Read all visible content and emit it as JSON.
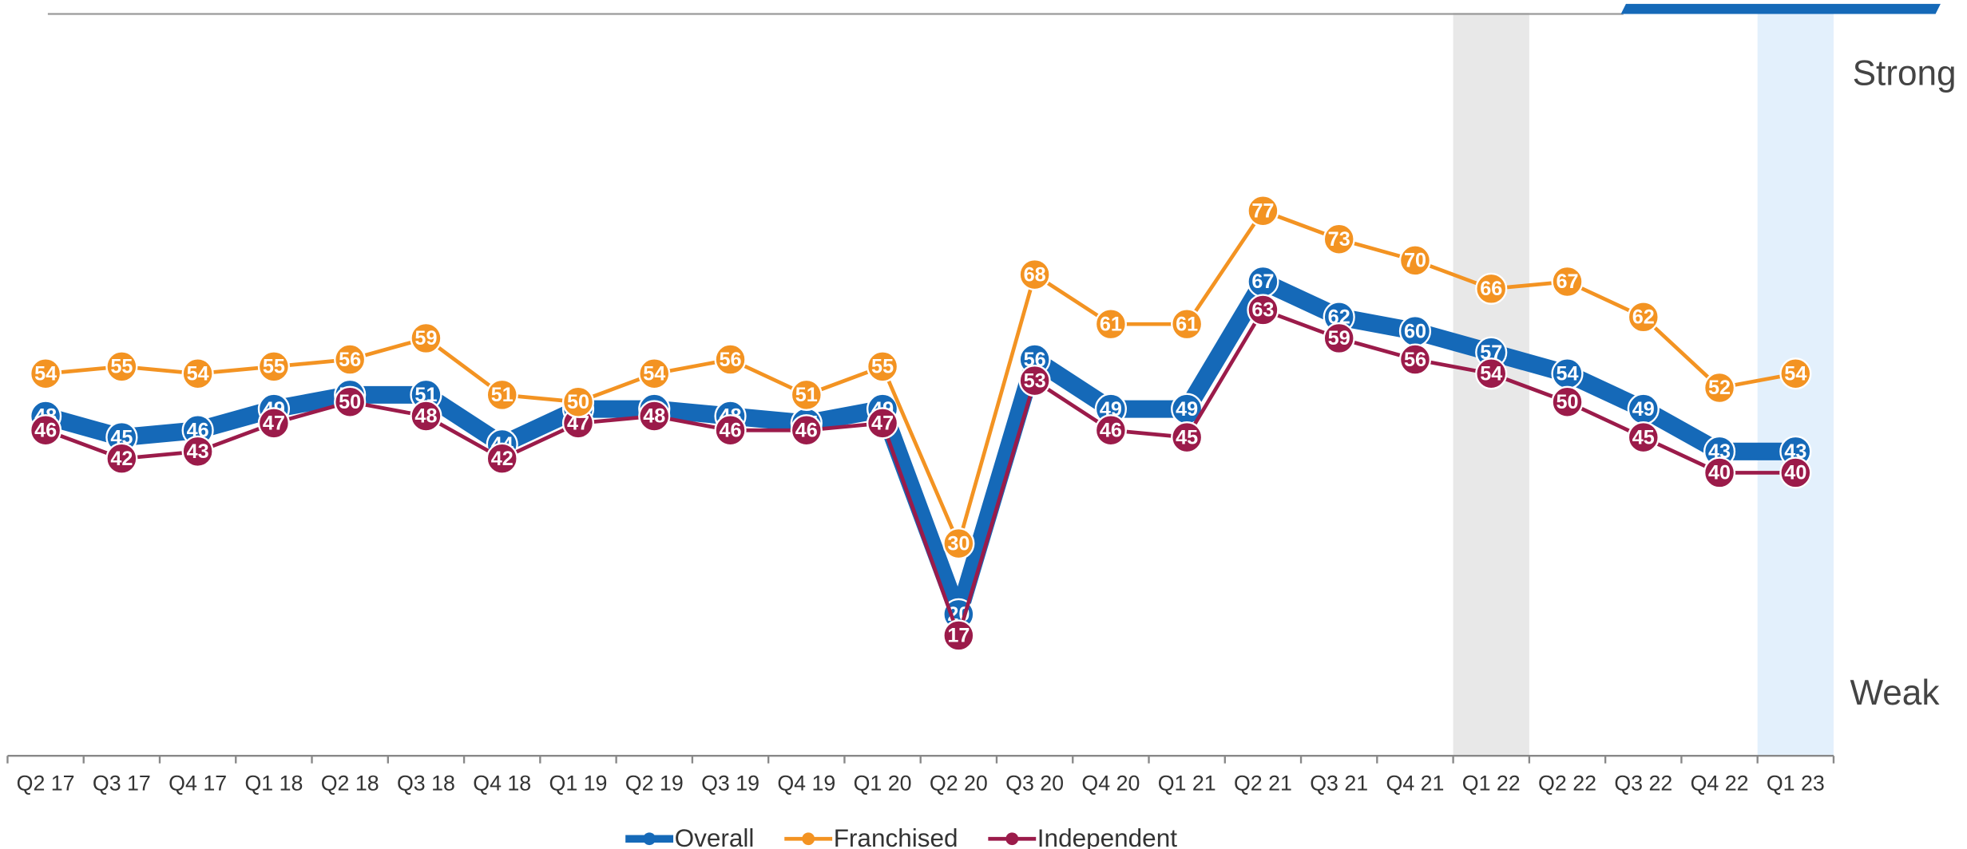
{
  "chart_data": {
    "type": "line",
    "categories": [
      "Q2 17",
      "Q3 17",
      "Q4 17",
      "Q1 18",
      "Q2 18",
      "Q3 18",
      "Q4 18",
      "Q1 19",
      "Q2 19",
      "Q3 19",
      "Q4 19",
      "Q1 20",
      "Q2 20",
      "Q3 20",
      "Q4 20",
      "Q1 21",
      "Q2 21",
      "Q3 21",
      "Q4 21",
      "Q1 22",
      "Q2 22",
      "Q3 22",
      "Q4 22",
      "Q1 23"
    ],
    "series": [
      {
        "name": "Overall",
        "color": "#1569b8",
        "values": [
          48,
          45,
          46,
          49,
          51,
          51,
          44,
          49,
          49,
          48,
          47,
          49,
          20,
          56,
          49,
          49,
          67,
          62,
          60,
          57,
          54,
          49,
          43,
          43
        ]
      },
      {
        "name": "Independent",
        "color": "#9b1b4a",
        "values": [
          46,
          42,
          43,
          47,
          50,
          48,
          42,
          47,
          48,
          46,
          46,
          47,
          17,
          53,
          46,
          45,
          63,
          59,
          56,
          54,
          50,
          45,
          40,
          40
        ]
      },
      {
        "name": "Franchised",
        "color": "#f39322",
        "values": [
          54,
          55,
          54,
          55,
          56,
          59,
          51,
          50,
          54,
          56,
          51,
          55,
          30,
          68,
          61,
          61,
          77,
          73,
          70,
          66,
          67,
          62,
          52,
          54
        ]
      }
    ],
    "ylim": [
      0,
      105
    ],
    "y_axis_labels": [
      "Strong",
      "Weak"
    ],
    "highlight": [
      {
        "category": "Q1 22",
        "color": "#e8e8e8"
      },
      {
        "category": "Q1 23",
        "color": "#e3f0fc"
      }
    ],
    "legend": "bottom"
  }
}
